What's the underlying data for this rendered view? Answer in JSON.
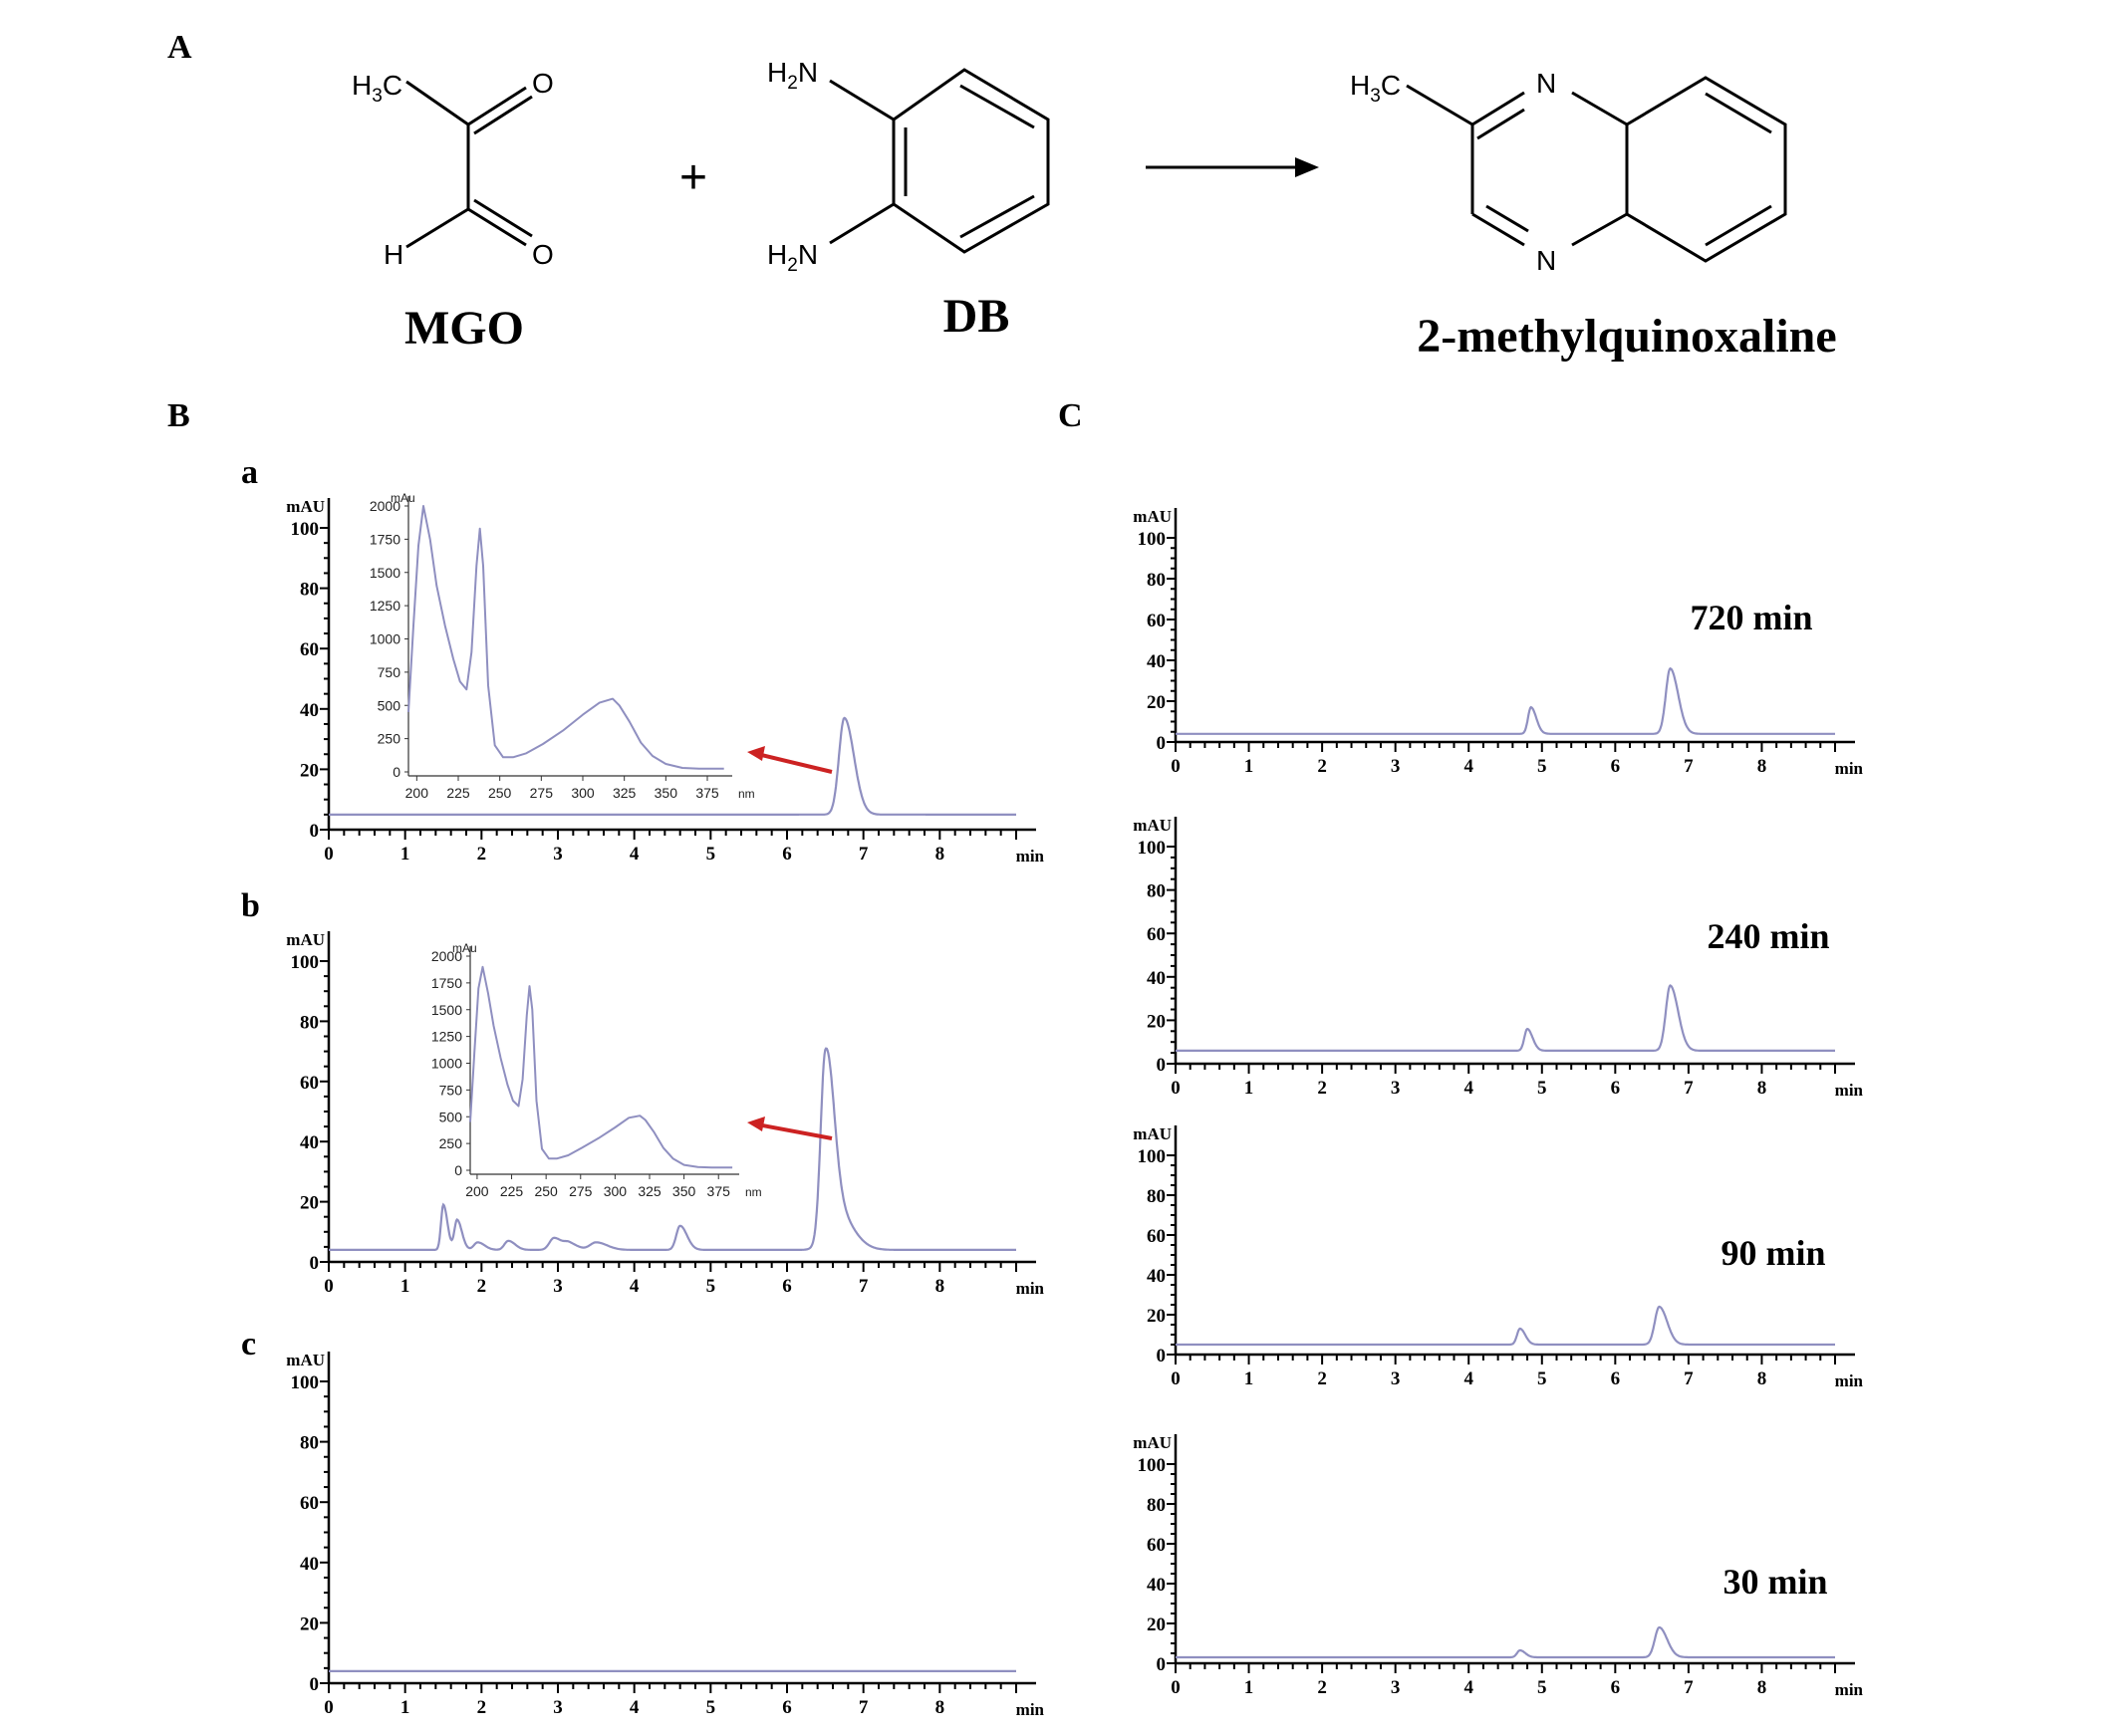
{
  "panels": {
    "A": "A",
    "B": "B",
    "C": "C"
  },
  "reaction": {
    "compounds": [
      {
        "name": "MGO",
        "atoms": {
          "h3c": "H3C",
          "o1": "O",
          "h": "H",
          "o2": "O"
        }
      },
      {
        "name": "DB",
        "atoms": {
          "h2n_top": "H2N",
          "h2n_bottom": "H2N"
        }
      },
      {
        "name": "2-methylquinoxaline",
        "atoms": {
          "h3c": "H3C",
          "n1": "N",
          "n2": "N"
        }
      }
    ],
    "plus": "+"
  },
  "colors": {
    "trace": "#8f8fc0",
    "arrow": "#cc2222",
    "axis": "#000000"
  },
  "chart_data": [
    {
      "id": "B-a",
      "type": "line",
      "panel_label": "a",
      "ylabel": "mAU",
      "xlabel": "min",
      "xlim": [
        0,
        9
      ],
      "ylim": [
        0,
        100
      ],
      "xticks": [
        0,
        1,
        2,
        3,
        4,
        5,
        6,
        7,
        8
      ],
      "yticks": [
        0,
        20,
        40,
        60,
        80,
        100
      ],
      "baseline": 5,
      "peaks": [
        {
          "x": 6.75,
          "y": 32,
          "w": 0.07
        }
      ],
      "inset": {
        "type": "line",
        "ylabel": "mAu",
        "xlabel": "nm",
        "xlim": [
          195,
          390
        ],
        "ylim": [
          0,
          2000
        ],
        "xticks": [
          200,
          225,
          250,
          275,
          300,
          325,
          350,
          375
        ],
        "yticks": [
          0,
          250,
          500,
          750,
          1000,
          1250,
          1500,
          1750,
          2000
        ],
        "x": [
          195,
          198,
          201,
          204,
          208,
          212,
          217,
          222,
          226,
          230,
          233,
          236,
          238,
          240,
          243,
          247,
          252,
          258,
          266,
          276,
          288,
          300,
          310,
          318,
          322,
          328,
          335,
          342,
          350,
          360,
          370,
          385
        ],
        "y": [
          450,
          1100,
          1700,
          2000,
          1750,
          1400,
          1100,
          850,
          680,
          620,
          900,
          1550,
          1830,
          1550,
          650,
          200,
          110,
          110,
          140,
          210,
          310,
          430,
          520,
          550,
          500,
          380,
          220,
          120,
          60,
          30,
          25,
          25
        ]
      }
    },
    {
      "id": "B-b",
      "type": "line",
      "panel_label": "b",
      "ylabel": "mAU",
      "xlabel": "min",
      "xlim": [
        0,
        9
      ],
      "ylim": [
        0,
        100
      ],
      "xticks": [
        0,
        1,
        2,
        3,
        4,
        5,
        6,
        7,
        8
      ],
      "yticks": [
        0,
        20,
        40,
        60,
        80,
        100
      ],
      "baseline": 4,
      "peaks": [
        {
          "x": 1.5,
          "y": 15,
          "w": 0.03
        },
        {
          "x": 1.68,
          "y": 10,
          "w": 0.035
        },
        {
          "x": 1.95,
          "y": 2.5,
          "w": 0.05
        },
        {
          "x": 2.35,
          "y": 3,
          "w": 0.05
        },
        {
          "x": 2.95,
          "y": 4,
          "w": 0.06
        },
        {
          "x": 3.15,
          "y": 2,
          "w": 0.06
        },
        {
          "x": 3.5,
          "y": 2.5,
          "w": 0.08
        },
        {
          "x": 4.6,
          "y": 8,
          "w": 0.05
        },
        {
          "x": 6.5,
          "y": 58,
          "w": 0.06
        },
        {
          "x": 6.62,
          "y": 14,
          "w": 0.12
        }
      ],
      "inset": {
        "type": "line",
        "ylabel": "mAu",
        "xlabel": "nm",
        "xlim": [
          195,
          390
        ],
        "ylim": [
          0,
          2000
        ],
        "xticks": [
          200,
          225,
          250,
          275,
          300,
          325,
          350,
          375
        ],
        "yticks": [
          0,
          250,
          500,
          750,
          1000,
          1250,
          1500,
          1750,
          2000
        ],
        "x": [
          195,
          198,
          201,
          204,
          208,
          212,
          217,
          222,
          226,
          230,
          233,
          236,
          238,
          240,
          243,
          247,
          252,
          258,
          266,
          276,
          288,
          300,
          310,
          318,
          322,
          328,
          335,
          342,
          350,
          360,
          370,
          385
        ],
        "y": [
          450,
          1100,
          1700,
          1900,
          1650,
          1350,
          1050,
          800,
          650,
          600,
          850,
          1450,
          1720,
          1500,
          650,
          200,
          110,
          110,
          140,
          210,
          300,
          400,
          490,
          510,
          470,
          360,
          210,
          110,
          50,
          30,
          25,
          25
        ]
      }
    },
    {
      "id": "B-c",
      "type": "line",
      "panel_label": "c",
      "ylabel": "mAU",
      "xlabel": "min",
      "xlim": [
        0,
        9
      ],
      "ylim": [
        0,
        100
      ],
      "xticks": [
        0,
        1,
        2,
        3,
        4,
        5,
        6,
        7,
        8
      ],
      "yticks": [
        0,
        20,
        40,
        60,
        80,
        100
      ],
      "baseline": 4,
      "peaks": []
    },
    {
      "id": "C-720",
      "type": "line",
      "annotation": "720 min",
      "ylabel": "mAU",
      "xlabel": "min",
      "xlim": [
        0,
        9
      ],
      "ylim": [
        0,
        100
      ],
      "xticks": [
        0,
        1,
        2,
        3,
        4,
        5,
        6,
        7,
        8
      ],
      "yticks": [
        0,
        20,
        40,
        60,
        80,
        100
      ],
      "baseline": 4,
      "peaks": [
        {
          "x": 4.85,
          "y": 13,
          "w": 0.04
        },
        {
          "x": 6.75,
          "y": 32,
          "w": 0.06
        }
      ]
    },
    {
      "id": "C-240",
      "type": "line",
      "annotation": "240 min",
      "ylabel": "mAU",
      "xlabel": "min",
      "xlim": [
        0,
        9
      ],
      "ylim": [
        0,
        100
      ],
      "xticks": [
        0,
        1,
        2,
        3,
        4,
        5,
        6,
        7,
        8
      ],
      "yticks": [
        0,
        20,
        40,
        60,
        80,
        100
      ],
      "baseline": 6,
      "peaks": [
        {
          "x": 4.8,
          "y": 10,
          "w": 0.04
        },
        {
          "x": 6.75,
          "y": 30,
          "w": 0.06
        }
      ]
    },
    {
      "id": "C-90",
      "type": "line",
      "annotation": "90 min",
      "ylabel": "mAU",
      "xlabel": "min",
      "xlim": [
        0,
        9
      ],
      "ylim": [
        0,
        100
      ],
      "xticks": [
        0,
        1,
        2,
        3,
        4,
        5,
        6,
        7,
        8
      ],
      "yticks": [
        0,
        20,
        40,
        60,
        80,
        100
      ],
      "baseline": 5,
      "peaks": [
        {
          "x": 4.7,
          "y": 8,
          "w": 0.04
        },
        {
          "x": 6.6,
          "y": 19,
          "w": 0.06
        }
      ]
    },
    {
      "id": "C-30",
      "type": "line",
      "annotation": "30 min",
      "ylabel": "mAU",
      "xlabel": "min",
      "xlim": [
        0,
        9
      ],
      "ylim": [
        0,
        100
      ],
      "xticks": [
        0,
        1,
        2,
        3,
        4,
        5,
        6,
        7,
        8
      ],
      "yticks": [
        0,
        20,
        40,
        60,
        80,
        100
      ],
      "baseline": 3,
      "peaks": [
        {
          "x": 4.7,
          "y": 3.5,
          "w": 0.04
        },
        {
          "x": 6.6,
          "y": 15,
          "w": 0.06
        }
      ]
    }
  ]
}
